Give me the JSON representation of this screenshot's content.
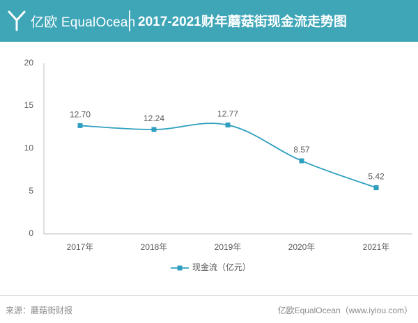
{
  "header": {
    "brand": "亿欧 EqualOcean",
    "title": "2017-2021财年蘑菇街现金流走势图"
  },
  "footer": {
    "source": "来源：蘑菇街财报",
    "credit": "亿欧EqualOcean（www.iyiou.com）"
  },
  "colors": {
    "header_bg": "#3fa6b8",
    "series": "#2f9fc0",
    "axis": "#bfbfbf",
    "text": "#595959"
  },
  "chart_data": {
    "type": "line",
    "title": "2017-2021财年蘑菇街现金流走势图",
    "categories": [
      "2017年",
      "2018年",
      "2019年",
      "2020年",
      "2021年"
    ],
    "series": [
      {
        "name": "现金流（亿元）",
        "values": [
          12.7,
          12.24,
          12.77,
          8.57,
          5.42
        ],
        "labels": [
          "12.70",
          "12.24",
          "12.77",
          "8.57",
          "5.42"
        ]
      }
    ],
    "ylim": [
      0,
      20
    ],
    "yticks": [
      "0",
      "5",
      "10",
      "15",
      "20"
    ],
    "grid": false,
    "legend": "bottom-center",
    "xlabel": "",
    "ylabel": ""
  }
}
